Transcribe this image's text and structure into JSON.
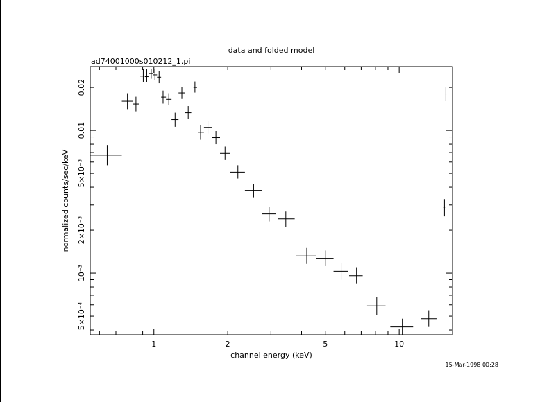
{
  "chart_data": {
    "type": "scatter",
    "title": "data and folded model",
    "subtitle": "ad74001000s010212_1.pi",
    "xlabel": "channel energy (keV)",
    "ylabel": "normalized counts/sec/keV",
    "xscale": "log",
    "yscale": "log",
    "xlim": [
      0.55,
      16.5
    ],
    "ylim": [
      0.00037,
      0.028
    ],
    "x_ticks": [
      {
        "value": 1,
        "label": "1"
      },
      {
        "value": 2,
        "label": "2"
      },
      {
        "value": 5,
        "label": "5"
      },
      {
        "value": 10,
        "label": "10"
      }
    ],
    "y_ticks": [
      {
        "value": 0.0005,
        "label": "5×10⁻⁴"
      },
      {
        "value": 0.001,
        "label": "10⁻³"
      },
      {
        "value": 0.002,
        "label": "2×10⁻³"
      },
      {
        "value": 0.005,
        "label": "5×10⁻³"
      },
      {
        "value": 0.01,
        "label": "0.01"
      },
      {
        "value": 0.02,
        "label": "0.02"
      }
    ],
    "timestamp": "15-Mar-1998 00:28",
    "points": [
      {
        "x": 0.645,
        "xlo": 0.55,
        "xhi": 0.74,
        "y": 0.0067,
        "ylo": 0.0057,
        "yhi": 0.0079
      },
      {
        "x": 0.78,
        "xlo": 0.74,
        "xhi": 0.82,
        "y": 0.016,
        "ylo": 0.0141,
        "yhi": 0.0182
      },
      {
        "x": 0.845,
        "xlo": 0.82,
        "xhi": 0.87,
        "y": 0.0153,
        "ylo": 0.0136,
        "yhi": 0.0172
      },
      {
        "x": 0.905,
        "xlo": 0.88,
        "xhi": 0.93,
        "y": 0.024,
        "ylo": 0.0218,
        "yhi": 0.027
      },
      {
        "x": 0.935,
        "xlo": 0.92,
        "xhi": 0.95,
        "y": 0.0238,
        "ylo": 0.0218,
        "yhi": 0.027
      },
      {
        "x": 0.975,
        "xlo": 0.955,
        "xhi": 0.99,
        "y": 0.025,
        "ylo": 0.023,
        "yhi": 0.027
      },
      {
        "x": 1.01,
        "xlo": 0.99,
        "xhi": 1.03,
        "y": 0.0245,
        "ylo": 0.0226,
        "yhi": 0.027
      },
      {
        "x": 1.05,
        "xlo": 1.03,
        "xhi": 1.07,
        "y": 0.0236,
        "ylo": 0.0214,
        "yhi": 0.026
      },
      {
        "x": 1.09,
        "xlo": 1.07,
        "xhi": 1.12,
        "y": 0.0171,
        "ylo": 0.0154,
        "yhi": 0.019
      },
      {
        "x": 1.15,
        "xlo": 1.12,
        "xhi": 1.18,
        "y": 0.0165,
        "ylo": 0.015,
        "yhi": 0.0182
      },
      {
        "x": 1.22,
        "xlo": 1.18,
        "xhi": 1.26,
        "y": 0.0119,
        "ylo": 0.0106,
        "yhi": 0.0133
      },
      {
        "x": 1.3,
        "xlo": 1.26,
        "xhi": 1.34,
        "y": 0.0183,
        "ylo": 0.0166,
        "yhi": 0.0202
      },
      {
        "x": 1.38,
        "xlo": 1.34,
        "xhi": 1.42,
        "y": 0.0133,
        "ylo": 0.012,
        "yhi": 0.0148
      },
      {
        "x": 1.47,
        "xlo": 1.45,
        "xhi": 1.5,
        "y": 0.02,
        "ylo": 0.0184,
        "yhi": 0.022
      },
      {
        "x": 1.55,
        "xlo": 1.51,
        "xhi": 1.6,
        "y": 0.0097,
        "ylo": 0.0086,
        "yhi": 0.0109
      },
      {
        "x": 1.66,
        "xlo": 1.6,
        "xhi": 1.72,
        "y": 0.0105,
        "ylo": 0.0095,
        "yhi": 0.0116
      },
      {
        "x": 1.79,
        "xlo": 1.72,
        "xhi": 1.86,
        "y": 0.0089,
        "ylo": 0.008,
        "yhi": 0.0099
      },
      {
        "x": 1.95,
        "xlo": 1.86,
        "xhi": 2.05,
        "y": 0.0069,
        "ylo": 0.0062,
        "yhi": 0.0077
      },
      {
        "x": 2.2,
        "xlo": 2.05,
        "xhi": 2.35,
        "y": 0.0051,
        "ylo": 0.0046,
        "yhi": 0.0057
      },
      {
        "x": 2.55,
        "xlo": 2.35,
        "xhi": 2.75,
        "y": 0.0038,
        "ylo": 0.0034,
        "yhi": 0.0042
      },
      {
        "x": 2.95,
        "xlo": 2.75,
        "xhi": 3.15,
        "y": 0.0026,
        "ylo": 0.0023,
        "yhi": 0.0029
      },
      {
        "x": 3.45,
        "xlo": 3.2,
        "xhi": 3.75,
        "y": 0.0024,
        "ylo": 0.0021,
        "yhi": 0.0027
      },
      {
        "x": 4.2,
        "xlo": 3.8,
        "xhi": 4.6,
        "y": 0.00132,
        "ylo": 0.00116,
        "yhi": 0.0015
      },
      {
        "x": 5.0,
        "xlo": 4.6,
        "xhi": 5.4,
        "y": 0.00127,
        "ylo": 0.00112,
        "yhi": 0.00144
      },
      {
        "x": 5.8,
        "xlo": 5.4,
        "xhi": 6.2,
        "y": 0.00103,
        "ylo": 0.0009,
        "yhi": 0.00117
      },
      {
        "x": 6.7,
        "xlo": 6.25,
        "xhi": 7.1,
        "y": 0.00096,
        "ylo": 0.00084,
        "yhi": 0.0011
      },
      {
        "x": 8.1,
        "xlo": 7.4,
        "xhi": 8.8,
        "y": 0.00059,
        "ylo": 0.00051,
        "yhi": 0.00068
      },
      {
        "x": 10.3,
        "xlo": 9.2,
        "xhi": 11.4,
        "y": 0.00042,
        "ylo": 0.00037,
        "yhi": 0.00048
      },
      {
        "x": 13.2,
        "xlo": 12.3,
        "xhi": 14.2,
        "y": 0.00048,
        "ylo": 0.00042,
        "yhi": 0.00055
      },
      {
        "x": 15.3,
        "xlo": 15.2,
        "xhi": 15.4,
        "y": 0.0029,
        "ylo": 0.0025,
        "yhi": 0.0033
      },
      {
        "x": 15.5,
        "xlo": 15.4,
        "xhi": 15.6,
        "y": 0.018,
        "ylo": 0.016,
        "yhi": 0.02
      }
    ]
  }
}
